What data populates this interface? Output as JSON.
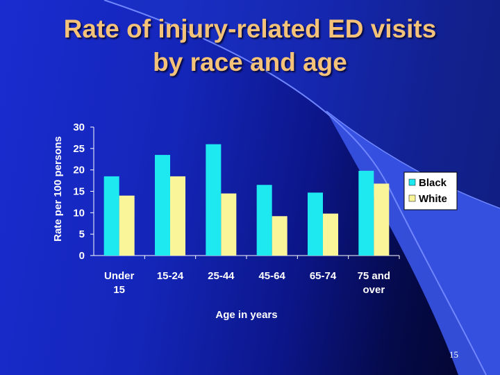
{
  "slide": {
    "title_line1": "Rate of injury-related ED visits",
    "title_line2": "by race and age",
    "page_number": "15"
  },
  "colors": {
    "background": "#1426b8",
    "title": "#f5c27a",
    "black_series": "#1ee8f0",
    "white_series": "#fbf59a",
    "axis_text": "#ffffff",
    "legend_bg": "#ffffff"
  },
  "chart_data": {
    "type": "bar",
    "title": "",
    "xlabel": "Age in years",
    "ylabel": "Rate per 100 persons",
    "ylim": [
      0,
      30
    ],
    "yticks": [
      0,
      5,
      10,
      15,
      20,
      25,
      30
    ],
    "categories": [
      [
        "Under",
        "15"
      ],
      [
        "15-24"
      ],
      [
        "25-44"
      ],
      [
        "45-64"
      ],
      [
        "65-74"
      ],
      [
        "75 and",
        "over"
      ]
    ],
    "series": [
      {
        "name": "Black",
        "color": "#1ee8f0",
        "values": [
          18.5,
          23.5,
          26,
          16.5,
          14.7,
          19.8
        ]
      },
      {
        "name": "White",
        "color": "#fbf59a",
        "values": [
          14,
          18.5,
          14.5,
          9.2,
          9.8,
          16.8
        ]
      }
    ],
    "grid": false,
    "legend": "right"
  }
}
